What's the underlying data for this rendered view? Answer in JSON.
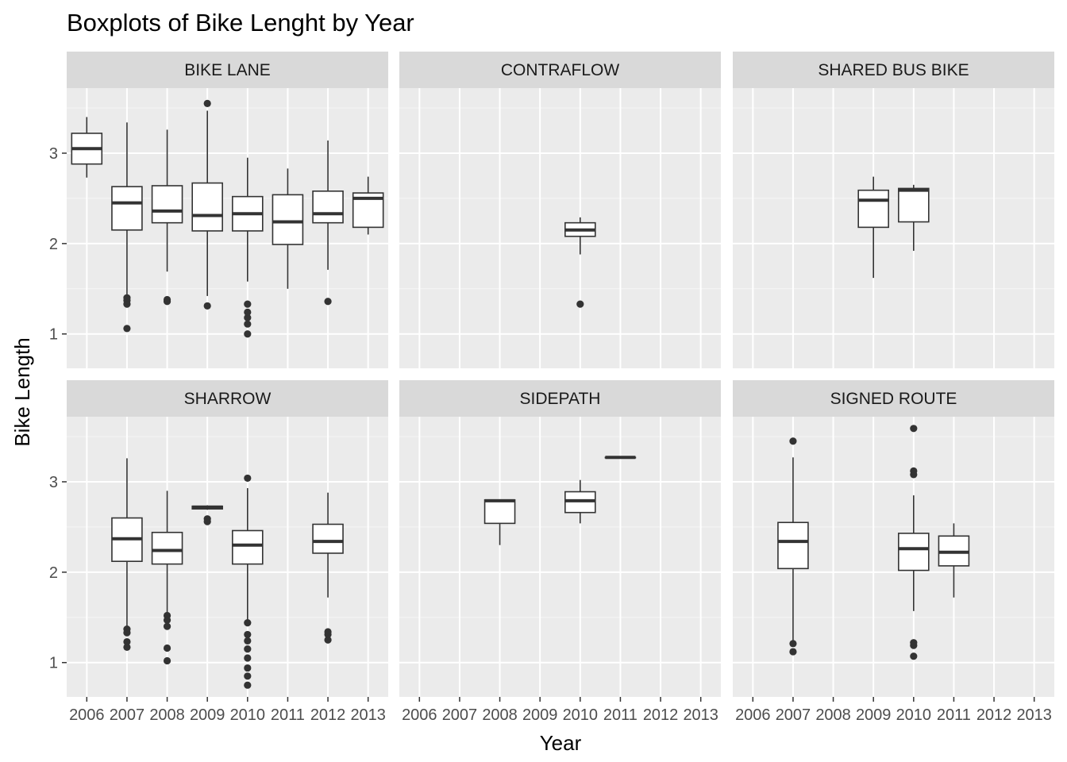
{
  "chart_data": {
    "type": "boxplot",
    "title": "Boxplots of Bike Lenght by Year",
    "xlabel": "Year",
    "ylabel": "Bike Length",
    "x_categories": [
      "2006",
      "2007",
      "2008",
      "2009",
      "2010",
      "2011",
      "2012",
      "2013"
    ],
    "y_ticks": [
      1,
      2,
      3
    ],
    "ylim": [
      0.62,
      3.72
    ],
    "grid": true,
    "facet_layout": "2 rows x 3 columns",
    "colors": {
      "panel_background": "#ebebeb",
      "strip_background": "#d9d9d9",
      "grid_major": "#ffffff",
      "box_line": "#333333",
      "box_fill": "#ffffff",
      "outlier": "#333333"
    },
    "facets": [
      {
        "name": "BIKE LANE",
        "boxes": [
          {
            "year": "2006",
            "low": 2.73,
            "q1": 2.88,
            "median": 3.05,
            "q3": 3.22,
            "high": 3.4,
            "outliers": []
          },
          {
            "year": "2007",
            "low": 1.42,
            "q1": 2.15,
            "median": 2.45,
            "q3": 2.63,
            "high": 3.34,
            "outliers": [
              1.06,
              1.33,
              1.37,
              1.4
            ]
          },
          {
            "year": "2008",
            "low": 1.69,
            "q1": 2.23,
            "median": 2.36,
            "q3": 2.64,
            "high": 3.26,
            "outliers": [
              1.36,
              1.38
            ]
          },
          {
            "year": "2009",
            "low": 1.42,
            "q1": 2.14,
            "median": 2.31,
            "q3": 2.67,
            "high": 3.47,
            "outliers": [
              1.31,
              3.55
            ]
          },
          {
            "year": "2010",
            "low": 1.58,
            "q1": 2.14,
            "median": 2.33,
            "q3": 2.52,
            "high": 2.95,
            "outliers": [
              1.0,
              1.11,
              1.18,
              1.24,
              1.33
            ]
          },
          {
            "year": "2011",
            "low": 1.5,
            "q1": 1.99,
            "median": 2.24,
            "q3": 2.54,
            "high": 2.83,
            "outliers": []
          },
          {
            "year": "2012",
            "low": 1.71,
            "q1": 2.23,
            "median": 2.33,
            "q3": 2.58,
            "high": 3.14,
            "outliers": [
              1.36
            ]
          },
          {
            "year": "2013",
            "low": 2.1,
            "q1": 2.18,
            "median": 2.5,
            "q3": 2.56,
            "high": 2.74,
            "outliers": []
          }
        ]
      },
      {
        "name": "CONTRAFLOW",
        "boxes": [
          {
            "year": "2010",
            "low": 1.88,
            "q1": 2.08,
            "median": 2.15,
            "q3": 2.23,
            "high": 2.29,
            "outliers": [
              1.33
            ]
          }
        ]
      },
      {
        "name": "SHARED BUS BIKE",
        "boxes": [
          {
            "year": "2009",
            "low": 1.62,
            "q1": 2.18,
            "median": 2.48,
            "q3": 2.59,
            "high": 2.74,
            "outliers": []
          },
          {
            "year": "2010",
            "low": 1.92,
            "q1": 2.24,
            "median": 2.59,
            "q3": 2.61,
            "high": 2.65,
            "outliers": []
          }
        ]
      },
      {
        "name": "SHARROW",
        "boxes": [
          {
            "year": "2007",
            "low": 1.4,
            "q1": 2.12,
            "median": 2.37,
            "q3": 2.6,
            "high": 3.26,
            "outliers": [
              1.17,
              1.23,
              1.33,
              1.37
            ]
          },
          {
            "year": "2008",
            "low": 1.55,
            "q1": 2.09,
            "median": 2.24,
            "q3": 2.44,
            "high": 2.9,
            "outliers": [
              1.02,
              1.16,
              1.4,
              1.47,
              1.52
            ]
          },
          {
            "year": "2009",
            "low": 2.69,
            "q1": 2.7,
            "median": 2.72,
            "q3": 2.73,
            "high": 2.74,
            "outliers": [
              2.56,
              2.59
            ]
          },
          {
            "year": "2010",
            "low": 1.47,
            "q1": 2.09,
            "median": 2.3,
            "q3": 2.46,
            "high": 2.93,
            "outliers": [
              0.75,
              0.85,
              0.94,
              1.05,
              1.15,
              1.24,
              1.31,
              1.44,
              3.04
            ]
          },
          {
            "year": "2012",
            "low": 1.72,
            "q1": 2.21,
            "median": 2.34,
            "q3": 2.53,
            "high": 2.88,
            "outliers": [
              1.25,
              1.31,
              1.34
            ]
          }
        ]
      },
      {
        "name": "SIDEPATH",
        "boxes": [
          {
            "year": "2008",
            "low": 2.3,
            "q1": 2.54,
            "median": 2.79,
            "q3": 2.8,
            "high": 2.8,
            "outliers": []
          },
          {
            "year": "2010",
            "low": 2.54,
            "q1": 2.66,
            "median": 2.79,
            "q3": 2.89,
            "high": 3.02,
            "outliers": []
          },
          {
            "year": "2011",
            "low": 3.27,
            "q1": 3.27,
            "median": 3.27,
            "q3": 3.27,
            "high": 3.27,
            "outliers": []
          }
        ]
      },
      {
        "name": "SIGNED ROUTE",
        "boxes": [
          {
            "year": "2007",
            "low": 1.24,
            "q1": 2.04,
            "median": 2.34,
            "q3": 2.55,
            "high": 3.27,
            "outliers": [
              1.12,
              1.21,
              3.45
            ]
          },
          {
            "year": "2010",
            "low": 1.57,
            "q1": 2.02,
            "median": 2.26,
            "q3": 2.43,
            "high": 2.85,
            "outliers": [
              1.07,
              1.19,
              1.22,
              3.08,
              3.12,
              3.59
            ]
          },
          {
            "year": "2011",
            "low": 1.72,
            "q1": 2.07,
            "median": 2.22,
            "q3": 2.4,
            "high": 2.54,
            "outliers": []
          }
        ]
      }
    ]
  }
}
